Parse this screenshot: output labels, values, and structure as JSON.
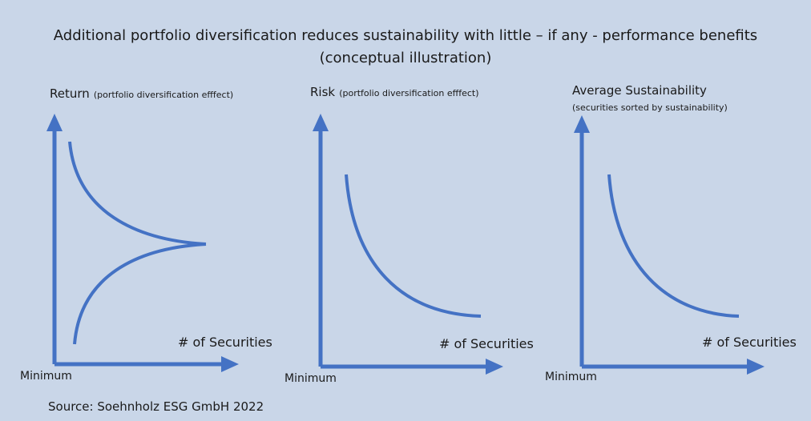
{
  "title": {
    "line1": "Additional portfolio diversification reduces sustainability with little – if any - performance benefits",
    "line2": "(conceptual illustration)"
  },
  "panels": [
    {
      "title": "Return",
      "subtitle": "(portfolio diversification efffect)",
      "x_label": "# of Securities",
      "origin_label": "Minimum"
    },
    {
      "title": "Risk",
      "subtitle": "(portfolio diversification efffect)",
      "x_label": "# of Securities",
      "origin_label": "Minimum"
    },
    {
      "title": "Average Sustainability",
      "subtitle": "(securities sorted by sustainability)",
      "x_label": "# of Securities",
      "origin_label": "Minimum"
    }
  ],
  "source": "Source: Soehnholz ESG GmbH 2022"
}
